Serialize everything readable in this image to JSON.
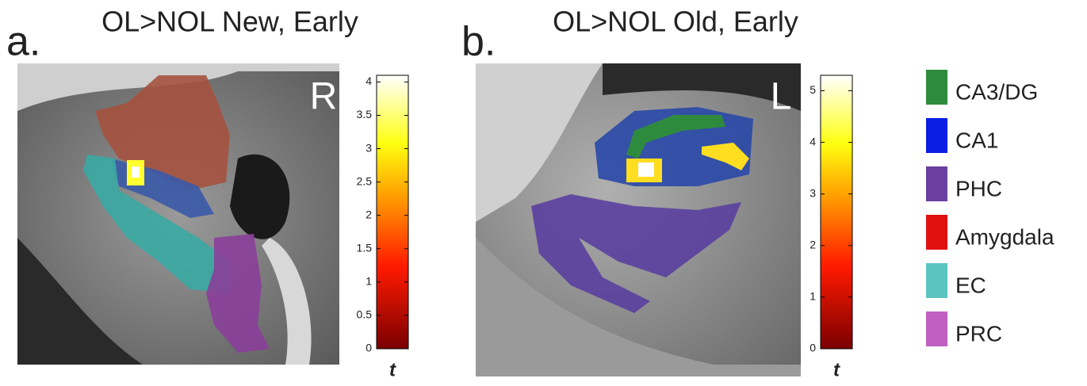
{
  "panels": [
    {
      "label": "a.",
      "title": "OL>NOL New, Early",
      "orientation": "R",
      "colorbar": {
        "label": "t",
        "lim": [
          0,
          4.1
        ],
        "ticks": [
          0,
          0.5,
          1,
          1.5,
          2,
          2.5,
          3,
          3.5,
          4
        ]
      }
    },
    {
      "label": "b.",
      "title": "OL>NOL Old, Early",
      "orientation": "L",
      "colorbar": {
        "label": "t",
        "lim": [
          0,
          5.3
        ],
        "ticks": [
          0,
          1,
          2,
          3,
          4,
          5
        ]
      }
    }
  ],
  "legend": [
    {
      "name": "CA3/DG",
      "color": "#2e8b3e"
    },
    {
      "name": "CA1",
      "color": "#0a1ee6"
    },
    {
      "name": "PHC",
      "color": "#6a3fa0"
    },
    {
      "name": "Amygdala",
      "color": "#e01010"
    },
    {
      "name": "EC",
      "color": "#5cc4c0"
    },
    {
      "name": "PRC",
      "color": "#c060c0"
    }
  ]
}
